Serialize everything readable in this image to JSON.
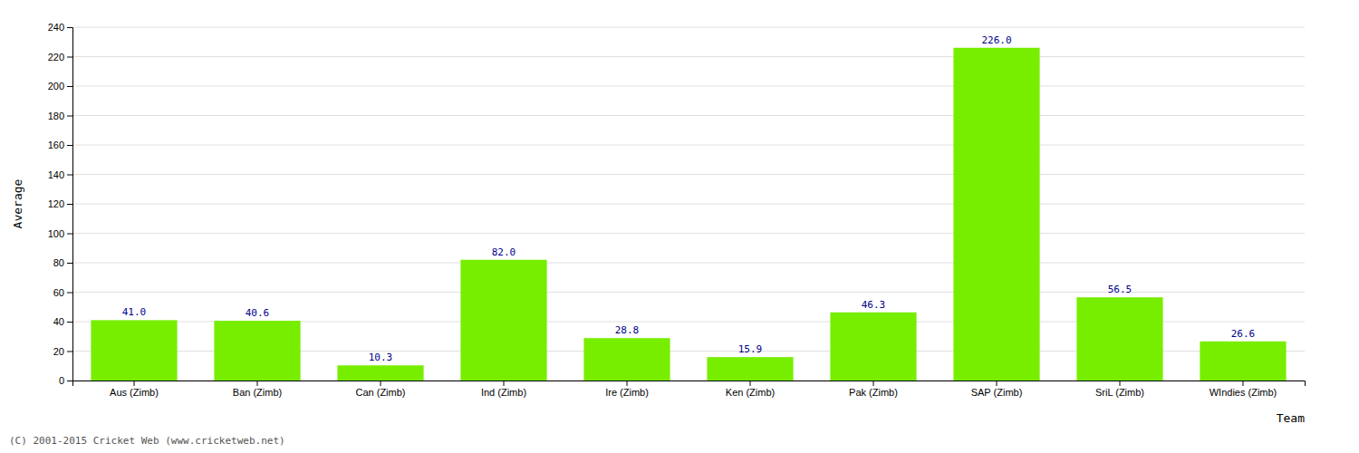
{
  "chart_data": {
    "type": "bar",
    "categories": [
      "Aus (Zimb)",
      "Ban (Zimb)",
      "Can (Zimb)",
      "Ind (Zimb)",
      "Ire (Zimb)",
      "Ken (Zimb)",
      "Pak (Zimb)",
      "SAP (Zimb)",
      "SriL (Zimb)",
      "WIndies (Zimb)"
    ],
    "values": [
      41.0,
      40.6,
      10.3,
      82.0,
      28.8,
      15.9,
      46.3,
      226.0,
      56.5,
      26.6
    ],
    "value_labels": [
      "41.0",
      "40.6",
      "10.3",
      "82.0",
      "28.8",
      "15.9",
      "46.3",
      "226.0",
      "56.5",
      "26.6"
    ],
    "color": "#77ee00",
    "xlabel": "Team",
    "ylabel": "Average",
    "ylim": [
      0,
      240
    ],
    "yticks": [
      0,
      20,
      40,
      60,
      80,
      100,
      120,
      140,
      160,
      180,
      200,
      220,
      240
    ],
    "grid": true,
    "data_labels": true,
    "annotations": [
      "(C) 2001-2015 Cricket Web (www.cricketweb.net)"
    ]
  }
}
